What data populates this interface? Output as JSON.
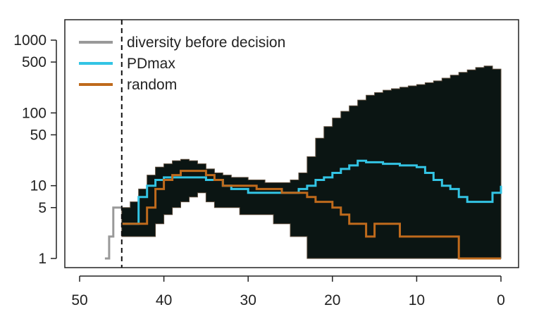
{
  "chart_data": {
    "type": "line",
    "title": "",
    "xlabel": "",
    "ylabel": "",
    "xlim": [
      52,
      -2
    ],
    "ylim": [
      0.8,
      2000
    ],
    "y_scale": "log",
    "x_reversed": true,
    "grid": false,
    "legend": "top-left",
    "x_ticks": [
      50,
      40,
      30,
      20,
      10,
      0
    ],
    "x_tick_labels": [
      "50",
      "40",
      "30",
      "20",
      "10",
      "0"
    ],
    "y_ticks": [
      1,
      5,
      10,
      50,
      100,
      500,
      1000
    ],
    "y_tick_labels": [
      "1",
      "5",
      "10",
      "50",
      "100",
      "500",
      "1000"
    ],
    "decision_time": 45,
    "colors": {
      "band": "#0b1513",
      "diversity": "#999999",
      "pdmax": "#33c4e4",
      "random": "#bf6a1c",
      "axis": "#111111"
    },
    "series": [
      {
        "name": "diversity before decision",
        "color": "#999999",
        "x": [
          47,
          46.5,
          46.5,
          46,
          46,
          45.5,
          45.5,
          45
        ],
        "y": [
          1,
          1,
          2,
          2,
          5,
          5,
          5,
          5
        ]
      },
      {
        "name": "PDmax",
        "color": "#33c4e4",
        "x": [
          45,
          44,
          43,
          42,
          41,
          40,
          39,
          38,
          37,
          36,
          35,
          34,
          33,
          32,
          31,
          30,
          29,
          28,
          27,
          26,
          25,
          24,
          23,
          22,
          21,
          20,
          19,
          18,
          17,
          16,
          15,
          14,
          13,
          12,
          11,
          10,
          9,
          8,
          7,
          6,
          5,
          4,
          3,
          2,
          1,
          0
        ],
        "y": [
          3,
          3,
          7,
          10,
          12,
          13,
          13,
          13,
          13,
          13,
          12,
          12,
          10,
          9,
          9,
          8,
          8,
          8,
          8,
          8,
          8,
          9,
          10,
          12,
          13,
          15,
          17,
          19,
          22,
          21,
          21,
          20,
          20,
          19,
          19,
          18,
          15,
          12,
          10,
          9,
          7,
          6,
          6,
          6,
          8,
          10
        ]
      },
      {
        "name": "random",
        "color": "#bf6a1c",
        "x": [
          45,
          44,
          43,
          42,
          41,
          40,
          39,
          38,
          37,
          36,
          35,
          34,
          33,
          32,
          31,
          30,
          29,
          28,
          27,
          26,
          25,
          24,
          23,
          22,
          21,
          20,
          19,
          18,
          17,
          16,
          15,
          14,
          13,
          12,
          11,
          10,
          9,
          8,
          7,
          6,
          5,
          4,
          3,
          2,
          1,
          0
        ],
        "y": [
          3,
          3,
          3,
          5,
          9,
          12,
          14,
          16,
          16,
          16,
          14,
          12,
          10,
          10,
          10,
          10,
          9,
          9,
          9,
          8,
          8,
          8,
          7,
          6,
          6,
          5,
          4,
          3,
          3,
          2,
          3,
          3,
          3,
          2,
          2,
          2,
          2,
          2,
          2,
          2,
          1,
          1,
          1,
          1,
          1,
          1
        ]
      }
    ],
    "band": {
      "x": [
        45,
        44,
        43,
        42,
        41,
        40,
        39,
        38,
        37,
        36,
        35,
        34,
        33,
        32,
        31,
        30,
        29,
        28,
        27,
        26,
        25,
        24,
        23,
        22,
        21,
        20,
        19,
        18,
        17,
        16,
        15,
        14,
        13,
        12,
        11,
        10,
        9,
        8,
        7,
        6,
        5,
        4,
        3,
        2,
        1,
        0
      ],
      "upper": [
        5,
        6,
        9,
        14,
        18,
        20,
        22,
        23,
        22,
        20,
        17,
        15,
        14,
        13,
        13,
        12,
        12,
        11,
        11,
        11,
        12,
        15,
        25,
        45,
        65,
        85,
        105,
        125,
        150,
        175,
        190,
        205,
        215,
        225,
        235,
        245,
        260,
        275,
        300,
        330,
        360,
        390,
        420,
        440,
        400,
        320
      ],
      "lower": [
        2,
        2,
        2,
        2,
        3,
        4,
        5,
        6,
        7,
        8,
        6,
        5,
        5,
        5,
        4,
        4,
        4,
        4,
        3,
        3,
        2,
        2,
        1,
        1,
        1,
        1,
        1,
        1,
        1,
        1,
        1,
        1,
        1,
        1,
        1,
        1,
        1,
        1,
        1,
        1,
        1,
        1,
        1,
        1,
        1,
        1
      ]
    }
  }
}
